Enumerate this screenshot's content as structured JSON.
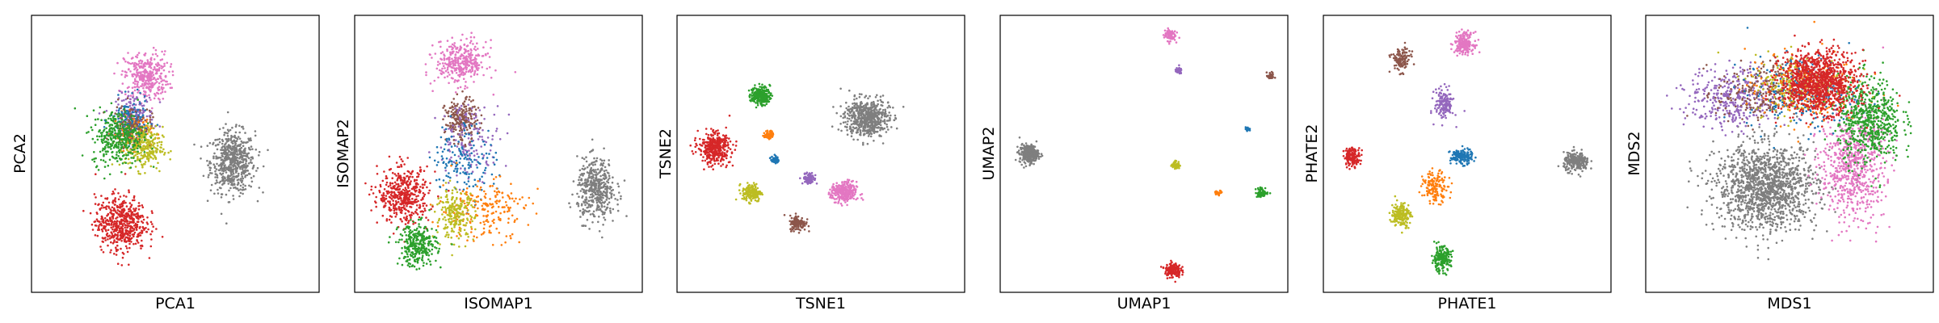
{
  "chart_data": [
    {
      "type": "scatter",
      "xlabel": "PCA1",
      "ylabel": "PCA2",
      "xlim": [
        0,
        100
      ],
      "ylim": [
        0,
        100
      ],
      "clusters": [
        {
          "color": "#7f7f7f",
          "center": [
            70,
            47
          ],
          "spread": [
            7,
            10
          ],
          "n": 600
        },
        {
          "color": "#e377c2",
          "center": [
            40,
            78
          ],
          "spread": [
            7,
            8
          ],
          "n": 350
        },
        {
          "color": "#9467bd",
          "center": [
            36,
            64
          ],
          "spread": [
            6,
            7
          ],
          "n": 150
        },
        {
          "color": "#ff7f0e",
          "center": [
            35,
            58
          ],
          "spread": [
            6,
            6
          ],
          "n": 120
        },
        {
          "color": "#1f77b4",
          "center": [
            34,
            62
          ],
          "spread": [
            6,
            7
          ],
          "n": 120
        },
        {
          "color": "#8c564b",
          "center": [
            35,
            60
          ],
          "spread": [
            6,
            7
          ],
          "n": 120
        },
        {
          "color": "#bcbd22",
          "center": [
            39,
            52
          ],
          "spread": [
            6,
            7
          ],
          "n": 250
        },
        {
          "color": "#2ca02c",
          "center": [
            30,
            56
          ],
          "spread": [
            8,
            9
          ],
          "n": 350
        },
        {
          "color": "#d62728",
          "center": [
            31,
            25
          ],
          "spread": [
            8,
            9
          ],
          "n": 550
        }
      ]
    },
    {
      "type": "scatter",
      "xlabel": "ISOMAP1",
      "ylabel": "ISOMAP2",
      "xlim": [
        0,
        100
      ],
      "ylim": [
        0,
        100
      ],
      "clusters": [
        {
          "color": "#7f7f7f",
          "center": [
            84,
            37
          ],
          "spread": [
            6,
            10
          ],
          "n": 450
        },
        {
          "color": "#e377c2",
          "center": [
            37,
            83
          ],
          "spread": [
            8,
            7
          ],
          "n": 350
        },
        {
          "color": "#8c564b",
          "center": [
            37,
            62
          ],
          "spread": [
            5,
            7
          ],
          "n": 220
        },
        {
          "color": "#9467bd",
          "center": [
            40,
            55
          ],
          "spread": [
            10,
            12
          ],
          "n": 150
        },
        {
          "color": "#1f77b4",
          "center": [
            38,
            48
          ],
          "spread": [
            10,
            12
          ],
          "n": 150
        },
        {
          "color": "#ff7f0e",
          "center": [
            45,
            30
          ],
          "spread": [
            14,
            10
          ],
          "n": 200
        },
        {
          "color": "#bcbd22",
          "center": [
            35,
            28
          ],
          "spread": [
            6,
            8
          ],
          "n": 220
        },
        {
          "color": "#d62728",
          "center": [
            17,
            35
          ],
          "spread": [
            8,
            9
          ],
          "n": 450
        },
        {
          "color": "#2ca02c",
          "center": [
            22,
            17
          ],
          "spread": [
            6,
            7
          ],
          "n": 300
        }
      ]
    },
    {
      "type": "scatter",
      "xlabel": "TSNE1",
      "ylabel": "TSNE2",
      "xlim": [
        0,
        100
      ],
      "ylim": [
        0,
        100
      ],
      "clusters": [
        {
          "color": "#7f7f7f",
          "center": [
            66,
            63
          ],
          "spread": [
            7,
            6
          ],
          "n": 600
        },
        {
          "color": "#d62728",
          "center": [
            13,
            52
          ],
          "spread": [
            5,
            5
          ],
          "n": 400
        },
        {
          "color": "#2ca02c",
          "center": [
            29,
            71
          ],
          "spread": [
            3,
            3
          ],
          "n": 220
        },
        {
          "color": "#ff7f0e",
          "center": [
            32,
            57
          ],
          "spread": [
            1.4,
            1.4
          ],
          "n": 60
        },
        {
          "color": "#1f77b4",
          "center": [
            34,
            48
          ],
          "spread": [
            1.2,
            1.2
          ],
          "n": 50
        },
        {
          "color": "#9467bd",
          "center": [
            46,
            41
          ],
          "spread": [
            2,
            1.8
          ],
          "n": 90
        },
        {
          "color": "#e377c2",
          "center": [
            58,
            36
          ],
          "spread": [
            4,
            3.5
          ],
          "n": 280
        },
        {
          "color": "#bcbd22",
          "center": [
            26,
            36
          ],
          "spread": [
            3,
            3
          ],
          "n": 180
        },
        {
          "color": "#8c564b",
          "center": [
            42,
            25
          ],
          "spread": [
            2.5,
            2.5
          ],
          "n": 130
        }
      ]
    },
    {
      "type": "scatter",
      "xlabel": "UMAP1",
      "ylabel": "UMAP2",
      "xlim": [
        0,
        100
      ],
      "ylim": [
        0,
        100
      ],
      "clusters": [
        {
          "color": "#7f7f7f",
          "center": [
            10,
            50
          ],
          "spread": [
            3,
            3
          ],
          "n": 300
        },
        {
          "color": "#e377c2",
          "center": [
            59,
            93
          ],
          "spread": [
            1.8,
            2
          ],
          "n": 90
        },
        {
          "color": "#9467bd",
          "center": [
            62,
            80
          ],
          "spread": [
            1,
            1
          ],
          "n": 40
        },
        {
          "color": "#8c564b",
          "center": [
            94,
            78
          ],
          "spread": [
            1.2,
            1.2
          ],
          "n": 40
        },
        {
          "color": "#1f77b4",
          "center": [
            86,
            59
          ],
          "spread": [
            0.6,
            0.6
          ],
          "n": 20
        },
        {
          "color": "#bcbd22",
          "center": [
            61,
            46
          ],
          "spread": [
            1.3,
            1.3
          ],
          "n": 50
        },
        {
          "color": "#ff7f0e",
          "center": [
            76,
            36
          ],
          "spread": [
            1.2,
            0.6
          ],
          "n": 30
        },
        {
          "color": "#2ca02c",
          "center": [
            91,
            36
          ],
          "spread": [
            2,
            1.6
          ],
          "n": 60
        },
        {
          "color": "#d62728",
          "center": [
            60,
            8
          ],
          "spread": [
            2.5,
            2.5
          ],
          "n": 160
        }
      ]
    },
    {
      "type": "scatter",
      "xlabel": "PHATE1",
      "ylabel": "PHATE2",
      "xlim": [
        0,
        100
      ],
      "ylim": [
        0,
        100
      ],
      "clusters": [
        {
          "color": "#7f7f7f",
          "center": [
            88,
            47
          ],
          "spread": [
            4,
            3
          ],
          "n": 250
        },
        {
          "color": "#e377c2",
          "center": [
            49,
            90
          ],
          "spread": [
            3,
            3.5
          ],
          "n": 200
        },
        {
          "color": "#8c564b",
          "center": [
            27,
            84
          ],
          "spread": [
            3,
            4
          ],
          "n": 120
        },
        {
          "color": "#9467bd",
          "center": [
            42,
            68
          ],
          "spread": [
            3,
            5
          ],
          "n": 150
        },
        {
          "color": "#1f77b4",
          "center": [
            48,
            49
          ],
          "spread": [
            3.5,
            2.5
          ],
          "n": 150
        },
        {
          "color": "#ff7f0e",
          "center": [
            39,
            38
          ],
          "spread": [
            4,
            5
          ],
          "n": 150
        },
        {
          "color": "#d62728",
          "center": [
            10,
            49
          ],
          "spread": [
            2.5,
            3
          ],
          "n": 150
        },
        {
          "color": "#bcbd22",
          "center": [
            27,
            28
          ],
          "spread": [
            3,
            4
          ],
          "n": 180
        },
        {
          "color": "#2ca02c",
          "center": [
            41,
            12
          ],
          "spread": [
            3,
            4
          ],
          "n": 200
        }
      ]
    },
    {
      "type": "scatter",
      "xlabel": "MDS1",
      "ylabel": "MDS2",
      "xlim": [
        0,
        100
      ],
      "ylim": [
        0,
        100
      ],
      "clusters": [
        {
          "color": "#7f7f7f",
          "center": [
            42,
            38
          ],
          "spread": [
            16,
            14
          ],
          "n": 1400
        },
        {
          "color": "#e377c2",
          "center": [
            72,
            46
          ],
          "spread": [
            10,
            18
          ],
          "n": 700
        },
        {
          "color": "#9467bd",
          "center": [
            30,
            70
          ],
          "spread": [
            14,
            10
          ],
          "n": 350
        },
        {
          "color": "#8c564b",
          "center": [
            40,
            72
          ],
          "spread": [
            14,
            10
          ],
          "n": 250
        },
        {
          "color": "#bcbd22",
          "center": [
            55,
            75
          ],
          "spread": [
            16,
            10
          ],
          "n": 250
        },
        {
          "color": "#1f77b4",
          "center": [
            55,
            72
          ],
          "spread": [
            18,
            12
          ],
          "n": 200
        },
        {
          "color": "#ff7f0e",
          "center": [
            55,
            74
          ],
          "spread": [
            18,
            12
          ],
          "n": 200
        },
        {
          "color": "#2ca02c",
          "center": [
            78,
            62
          ],
          "spread": [
            10,
            14
          ],
          "n": 600
        },
        {
          "color": "#d62728",
          "center": [
            60,
            76
          ],
          "spread": [
            12,
            10
          ],
          "n": 1100
        }
      ]
    }
  ]
}
